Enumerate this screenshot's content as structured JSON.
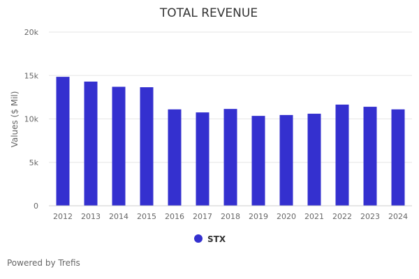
{
  "chart_data": {
    "type": "bar",
    "title": "TOTAL REVENUE",
    "xlabel": "",
    "ylabel": "Values ($ Mil)",
    "categories": [
      "2012",
      "2013",
      "2014",
      "2015",
      "2016",
      "2017",
      "2018",
      "2019",
      "2020",
      "2021",
      "2022",
      "2023",
      "2024"
    ],
    "series": [
      {
        "name": "STX",
        "values": [
          14850,
          14300,
          13700,
          13650,
          11100,
          10750,
          11150,
          10350,
          10450,
          10600,
          11650,
          11400,
          11100
        ]
      }
    ],
    "ylim": [
      0,
      20000
    ],
    "yticks": [
      0,
      5000,
      10000,
      15000,
      20000
    ],
    "ytick_labels": [
      "0",
      "5k",
      "10k",
      "15k",
      "20k"
    ],
    "grid": true,
    "legend": "bottom-center"
  },
  "colors": {
    "bar": "#3430cf",
    "grid": "#e6e6e6",
    "axis": "#cccccc",
    "title": "#333333",
    "tick": "#666666"
  },
  "footer": {
    "credit": "Powered by Trefis"
  }
}
